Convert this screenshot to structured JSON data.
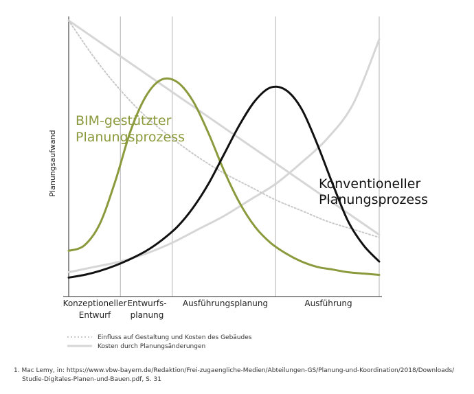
{
  "chart_data": {
    "type": "line",
    "ylabel": "Planungsaufwand",
    "x_phases": [
      {
        "label_lines": [
          "Konzeptioneller",
          "Entwurf"
        ]
      },
      {
        "label_lines": [
          "Entwurfs-",
          "planung"
        ]
      },
      {
        "label_lines": [
          "Ausführungsplanung"
        ]
      },
      {
        "label_lines": [
          "Ausführung"
        ]
      }
    ],
    "annotations": {
      "bim": [
        "BIM-gestützter",
        "Planungsprozess"
      ],
      "conventional": [
        "Konventioneller",
        "Planungsprozess"
      ]
    },
    "xlim": [
      0,
      6
    ],
    "ylim": [
      0,
      1
    ],
    "series": [
      {
        "name": "BIM-gestützter Planungsprozess",
        "color": "#8a9a3c",
        "x": [
          0,
          0.3,
          0.6,
          0.9,
          1.2,
          1.5,
          1.8,
          2.1,
          2.4,
          2.7,
          3.0,
          3.3,
          3.6,
          3.9,
          4.2,
          4.5,
          4.8,
          5.1,
          5.4,
          5.7,
          6.0
        ],
        "values": [
          0.14,
          0.16,
          0.24,
          0.4,
          0.59,
          0.72,
          0.78,
          0.77,
          0.7,
          0.58,
          0.44,
          0.32,
          0.23,
          0.17,
          0.13,
          0.1,
          0.08,
          0.07,
          0.06,
          0.055,
          0.05
        ]
      },
      {
        "name": "Konventioneller Planungsprozess",
        "color": "#111111",
        "x": [
          0,
          0.3,
          0.6,
          0.9,
          1.2,
          1.5,
          1.8,
          2.1,
          2.4,
          2.7,
          3.0,
          3.3,
          3.6,
          3.9,
          4.2,
          4.5,
          4.8,
          5.1,
          5.4,
          5.7,
          6.0
        ],
        "values": [
          0.04,
          0.05,
          0.065,
          0.085,
          0.11,
          0.14,
          0.18,
          0.23,
          0.3,
          0.39,
          0.5,
          0.61,
          0.7,
          0.75,
          0.74,
          0.67,
          0.54,
          0.39,
          0.25,
          0.16,
          0.1
        ]
      },
      {
        "name": "Einfluss auf Gestaltung und Kosten des Gebäudes",
        "color": "#c8c8c8",
        "dash": "dotted",
        "x": [
          0,
          0.5,
          1.0,
          1.5,
          2.0,
          2.5,
          3.0,
          3.5,
          4.0,
          4.5,
          5.0,
          5.5,
          6.0
        ],
        "values": [
          1.0,
          0.86,
          0.74,
          0.64,
          0.56,
          0.49,
          0.43,
          0.38,
          0.33,
          0.29,
          0.25,
          0.22,
          0.19
        ]
      },
      {
        "name": "Kosten durch Planungsänderungen",
        "color": "#d6d6d6",
        "dash": "solid",
        "x": [
          0,
          0.5,
          1.0,
          1.5,
          2.0,
          2.5,
          3.0,
          3.5,
          4.0,
          4.5,
          5.0,
          5.5,
          6.0
        ],
        "values": [
          0.06,
          0.08,
          0.1,
          0.13,
          0.17,
          0.22,
          0.27,
          0.33,
          0.39,
          0.47,
          0.56,
          0.69,
          0.93
        ]
      },
      {
        "name": "Kosten-Diagonale",
        "color": "#d6d6d6",
        "dash": "solid",
        "x": [
          0,
          6.0
        ],
        "values": [
          1.0,
          0.2
        ]
      }
    ],
    "legend": {
      "placement": "bottom-left",
      "entries": [
        {
          "label": "Einfluss auf Gestaltung und Kosten des Gebäudes",
          "style": "dotted",
          "color": "#c8c8c8"
        },
        {
          "label": "Kosten durch Planungsänderungen",
          "style": "solid",
          "color": "#d6d6d6"
        }
      ]
    },
    "grid": "vertical phase separators"
  },
  "footnote": {
    "line1": "1. Mac Lemy, in: https://www.vbw-bayern.de/Redaktion/Frei-zugaengliche-Medien/Abteilungen-GS/Planung-und-Koordination/2018/Downloads/",
    "line2": "Studie-Digitales-Planen-und-Bauen.pdf, S. 31"
  }
}
